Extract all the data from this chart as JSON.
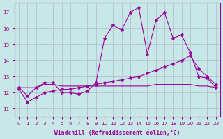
{
  "bg_color": "#c8e8e8",
  "line_color": "#990099",
  "grid_color": "#b0b8d0",
  "xlabel": "Windchill (Refroidissement éolien,°C)",
  "xlim": [
    -0.5,
    23.5
  ],
  "ylim": [
    10.5,
    17.6
  ],
  "x_ticks": [
    0,
    1,
    2,
    3,
    4,
    5,
    6,
    7,
    8,
    9,
    10,
    11,
    12,
    13,
    14,
    15,
    16,
    17,
    18,
    19,
    20,
    21,
    22,
    23
  ],
  "y_ticks": [
    11,
    12,
    13,
    14,
    15,
    16,
    17
  ],
  "series1_x": [
    0,
    1,
    2,
    3,
    4,
    5,
    6,
    7,
    8,
    9,
    10,
    11,
    12,
    13,
    14,
    15,
    16,
    17,
    18,
    19,
    20,
    21,
    22,
    23
  ],
  "series1_y": [
    12.3,
    11.8,
    12.3,
    12.6,
    12.6,
    12.0,
    12.0,
    11.9,
    12.1,
    12.6,
    15.4,
    16.2,
    15.9,
    17.0,
    17.3,
    14.4,
    16.5,
    17.0,
    15.4,
    15.6,
    14.5,
    13.0,
    12.9,
    12.3
  ],
  "series2_x": [
    0,
    1,
    2,
    3,
    4,
    5,
    6,
    7,
    8,
    9,
    10,
    11,
    12,
    13,
    14,
    15,
    16,
    17,
    18,
    19,
    20,
    21,
    22,
    23
  ],
  "series2_y": [
    12.2,
    11.4,
    11.7,
    12.0,
    12.1,
    12.2,
    12.2,
    12.3,
    12.4,
    12.5,
    12.6,
    12.7,
    12.8,
    12.9,
    13.0,
    13.2,
    13.4,
    13.6,
    13.8,
    14.0,
    14.3,
    13.5,
    13.0,
    12.5
  ],
  "series3_x": [
    0,
    1,
    2,
    3,
    4,
    5,
    6,
    7,
    8,
    9,
    10,
    11,
    12,
    13,
    14,
    15,
    16,
    17,
    18,
    19,
    20,
    21,
    22,
    23
  ],
  "series3_y": [
    12.3,
    12.3,
    12.3,
    12.5,
    12.5,
    12.4,
    12.4,
    12.4,
    12.4,
    12.4,
    12.4,
    12.4,
    12.4,
    12.4,
    12.4,
    12.4,
    12.5,
    12.5,
    12.5,
    12.5,
    12.5,
    12.4,
    12.4,
    12.3
  ],
  "marker": "*",
  "markersize": 3.0,
  "linewidth": 0.8,
  "tick_fontsize": 5.2,
  "label_fontsize": 5.8
}
